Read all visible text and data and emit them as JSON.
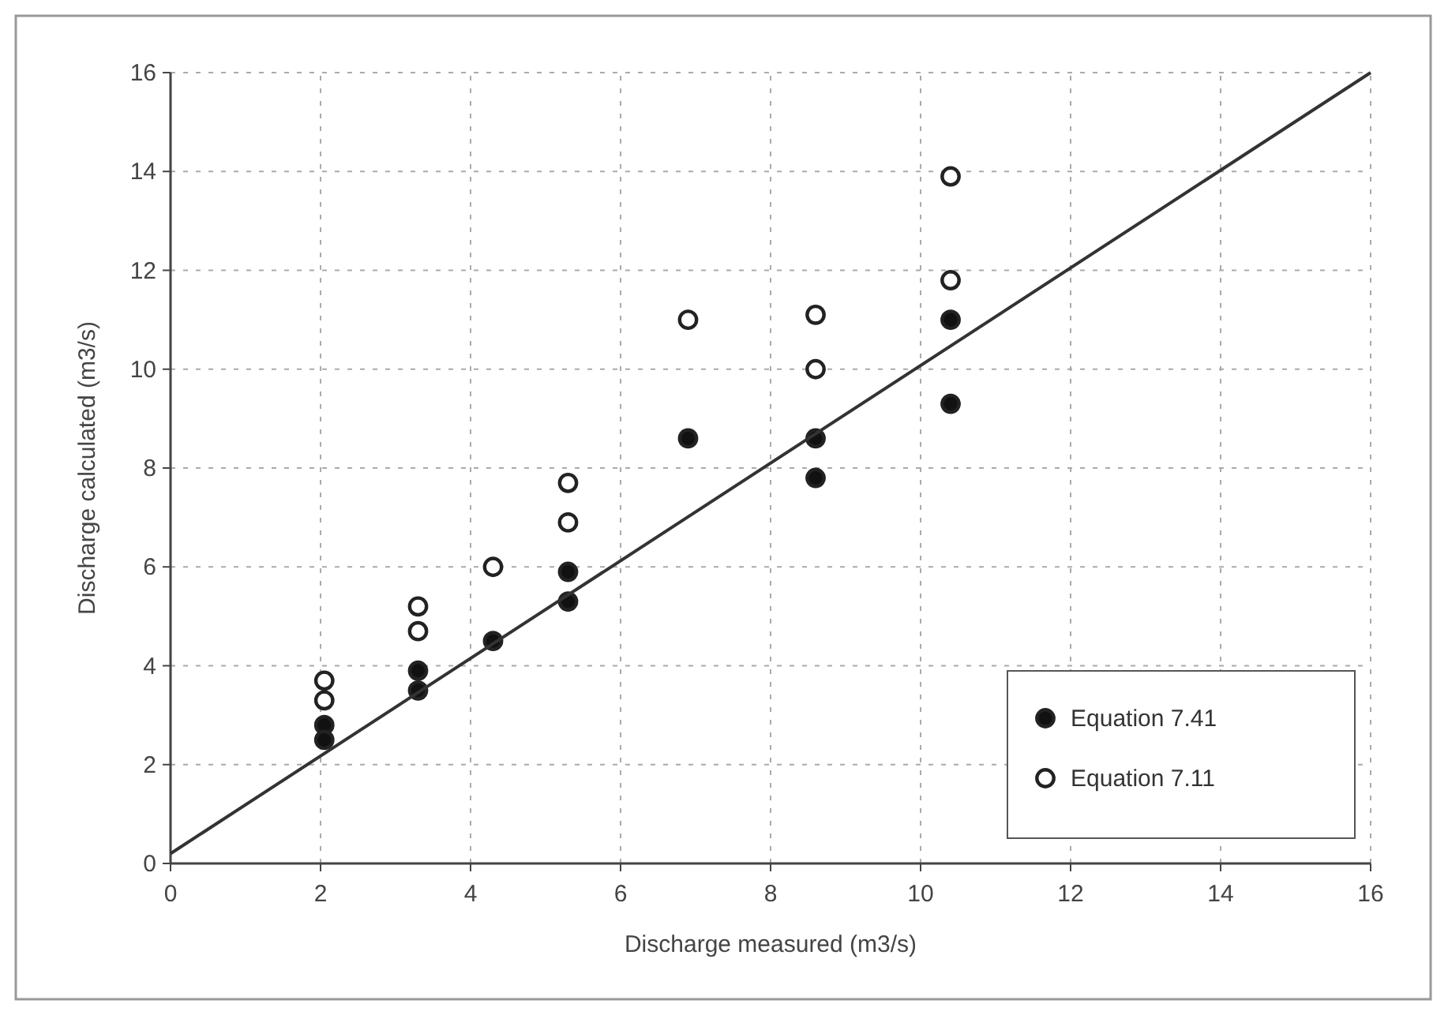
{
  "chart_data": {
    "type": "scatter",
    "xlabel": "Discharge measured (m3/s)",
    "ylabel": "Discharge calculated (m3/s)",
    "xlim": [
      0,
      16
    ],
    "ylim": [
      0,
      16
    ],
    "xticks": [
      0,
      2,
      4,
      6,
      8,
      10,
      12,
      14,
      16
    ],
    "yticks": [
      0,
      2,
      4,
      6,
      8,
      10,
      12,
      14,
      16
    ],
    "grid": true,
    "legend": "bottom right",
    "marker": "circle",
    "series": [
      {
        "name": "Equation 7.41",
        "color": "#111111",
        "x": [
          2.05,
          2.05,
          3.3,
          3.3,
          4.3,
          5.3,
          5.3,
          6.9,
          8.6,
          8.6,
          10.4,
          10.4
        ],
        "values": [
          2.8,
          2.5,
          3.9,
          3.5,
          4.5,
          5.9,
          5.3,
          8.6,
          8.6,
          7.8,
          11.0,
          9.3
        ]
      },
      {
        "name": "Equation 7.11",
        "color": "#ffffff",
        "x": [
          2.05,
          2.05,
          3.3,
          3.3,
          4.3,
          5.3,
          5.3,
          6.9,
          8.6,
          8.6,
          10.4,
          10.4
        ],
        "values": [
          3.7,
          3.3,
          4.7,
          5.2,
          6.0,
          7.7,
          6.9,
          11.0,
          11.1,
          10.0,
          13.9,
          11.8
        ]
      },
      {
        "type": "line",
        "color": "#333333",
        "x": [
          0,
          16
        ],
        "values": [
          0.2,
          16
        ],
        "line_style": "solid",
        "marker": "none"
      }
    ]
  }
}
